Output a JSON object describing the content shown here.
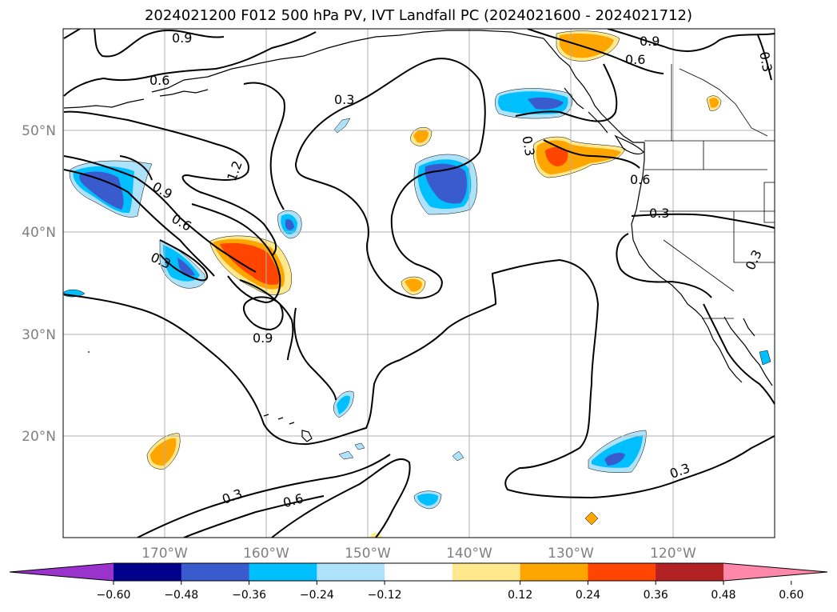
{
  "title": "2024021200 F012 500 hPa PV, IVT Landfall PC (2024021600 - 2024021712)",
  "lat_labels": [
    "50°N",
    "40°N",
    "30°N",
    "20°N"
  ],
  "lon_labels": [
    "170°W",
    "160°W",
    "150°W",
    "140°W",
    "130°W",
    "120°W"
  ],
  "contour_labels": [
    "0.9",
    "0.9",
    "0.6",
    "0.6",
    "0.3",
    "0.3",
    "0.3",
    "1.2",
    "0.9",
    "0.6",
    "0.3",
    "0.9",
    "0.3",
    "0.6",
    "0.6",
    "0.3",
    "0.3",
    "0.3"
  ],
  "colorbar": {
    "ticks": [
      "−0.60",
      "−0.48",
      "−0.36",
      "−0.24",
      "−0.12",
      "0.12",
      "0.24",
      "0.36",
      "0.48",
      "0.60"
    ],
    "colors": [
      "#9933cc",
      "#00008b",
      "#3a5bcd",
      "#00bfff",
      "#aee1fa",
      "#ffffff",
      "#ffe98c",
      "#ffa500",
      "#ff4500",
      "#b22222",
      "#ff88aa"
    ]
  },
  "colors": {
    "neg_light": "#aee1fa",
    "neg_mid": "#00bfff",
    "neg_dark": "#3a5bcd",
    "pos_light": "#ffe98c",
    "pos_mid": "#ffa500",
    "pos_dark": "#ff4500",
    "grid": "#b0b0b0",
    "contour": "#000000"
  }
}
